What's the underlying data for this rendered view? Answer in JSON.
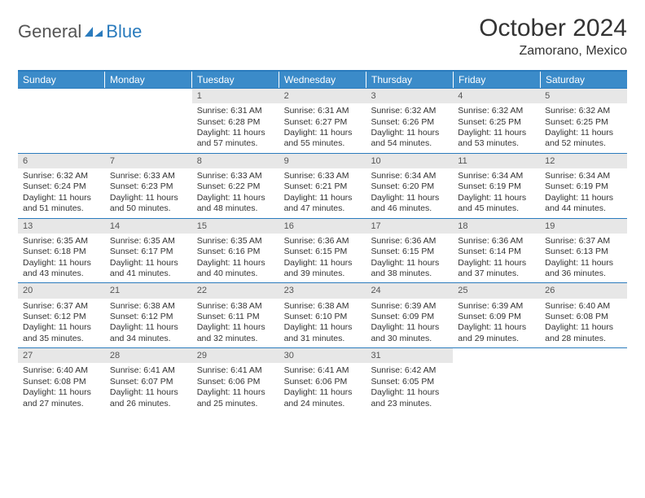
{
  "logo": {
    "text1": "General",
    "text2": "Blue"
  },
  "title": "October 2024",
  "location": "Zamorano, Mexico",
  "colors": {
    "header_bg": "#3b8bc9",
    "header_text": "#ffffff",
    "border": "#2a7bbd",
    "daynum_bg": "#e7e7e7",
    "daynum_text": "#555555",
    "body_text": "#333333",
    "background": "#ffffff"
  },
  "dow": [
    "Sunday",
    "Monday",
    "Tuesday",
    "Wednesday",
    "Thursday",
    "Friday",
    "Saturday"
  ],
  "weeks": [
    [
      null,
      null,
      {
        "n": "1",
        "sr": "Sunrise: 6:31 AM",
        "ss": "Sunset: 6:28 PM",
        "dl": "Daylight: 11 hours and 57 minutes."
      },
      {
        "n": "2",
        "sr": "Sunrise: 6:31 AM",
        "ss": "Sunset: 6:27 PM",
        "dl": "Daylight: 11 hours and 55 minutes."
      },
      {
        "n": "3",
        "sr": "Sunrise: 6:32 AM",
        "ss": "Sunset: 6:26 PM",
        "dl": "Daylight: 11 hours and 54 minutes."
      },
      {
        "n": "4",
        "sr": "Sunrise: 6:32 AM",
        "ss": "Sunset: 6:25 PM",
        "dl": "Daylight: 11 hours and 53 minutes."
      },
      {
        "n": "5",
        "sr": "Sunrise: 6:32 AM",
        "ss": "Sunset: 6:25 PM",
        "dl": "Daylight: 11 hours and 52 minutes."
      }
    ],
    [
      {
        "n": "6",
        "sr": "Sunrise: 6:32 AM",
        "ss": "Sunset: 6:24 PM",
        "dl": "Daylight: 11 hours and 51 minutes."
      },
      {
        "n": "7",
        "sr": "Sunrise: 6:33 AM",
        "ss": "Sunset: 6:23 PM",
        "dl": "Daylight: 11 hours and 50 minutes."
      },
      {
        "n": "8",
        "sr": "Sunrise: 6:33 AM",
        "ss": "Sunset: 6:22 PM",
        "dl": "Daylight: 11 hours and 48 minutes."
      },
      {
        "n": "9",
        "sr": "Sunrise: 6:33 AM",
        "ss": "Sunset: 6:21 PM",
        "dl": "Daylight: 11 hours and 47 minutes."
      },
      {
        "n": "10",
        "sr": "Sunrise: 6:34 AM",
        "ss": "Sunset: 6:20 PM",
        "dl": "Daylight: 11 hours and 46 minutes."
      },
      {
        "n": "11",
        "sr": "Sunrise: 6:34 AM",
        "ss": "Sunset: 6:19 PM",
        "dl": "Daylight: 11 hours and 45 minutes."
      },
      {
        "n": "12",
        "sr": "Sunrise: 6:34 AM",
        "ss": "Sunset: 6:19 PM",
        "dl": "Daylight: 11 hours and 44 minutes."
      }
    ],
    [
      {
        "n": "13",
        "sr": "Sunrise: 6:35 AM",
        "ss": "Sunset: 6:18 PM",
        "dl": "Daylight: 11 hours and 43 minutes."
      },
      {
        "n": "14",
        "sr": "Sunrise: 6:35 AM",
        "ss": "Sunset: 6:17 PM",
        "dl": "Daylight: 11 hours and 41 minutes."
      },
      {
        "n": "15",
        "sr": "Sunrise: 6:35 AM",
        "ss": "Sunset: 6:16 PM",
        "dl": "Daylight: 11 hours and 40 minutes."
      },
      {
        "n": "16",
        "sr": "Sunrise: 6:36 AM",
        "ss": "Sunset: 6:15 PM",
        "dl": "Daylight: 11 hours and 39 minutes."
      },
      {
        "n": "17",
        "sr": "Sunrise: 6:36 AM",
        "ss": "Sunset: 6:15 PM",
        "dl": "Daylight: 11 hours and 38 minutes."
      },
      {
        "n": "18",
        "sr": "Sunrise: 6:36 AM",
        "ss": "Sunset: 6:14 PM",
        "dl": "Daylight: 11 hours and 37 minutes."
      },
      {
        "n": "19",
        "sr": "Sunrise: 6:37 AM",
        "ss": "Sunset: 6:13 PM",
        "dl": "Daylight: 11 hours and 36 minutes."
      }
    ],
    [
      {
        "n": "20",
        "sr": "Sunrise: 6:37 AM",
        "ss": "Sunset: 6:12 PM",
        "dl": "Daylight: 11 hours and 35 minutes."
      },
      {
        "n": "21",
        "sr": "Sunrise: 6:38 AM",
        "ss": "Sunset: 6:12 PM",
        "dl": "Daylight: 11 hours and 34 minutes."
      },
      {
        "n": "22",
        "sr": "Sunrise: 6:38 AM",
        "ss": "Sunset: 6:11 PM",
        "dl": "Daylight: 11 hours and 32 minutes."
      },
      {
        "n": "23",
        "sr": "Sunrise: 6:38 AM",
        "ss": "Sunset: 6:10 PM",
        "dl": "Daylight: 11 hours and 31 minutes."
      },
      {
        "n": "24",
        "sr": "Sunrise: 6:39 AM",
        "ss": "Sunset: 6:09 PM",
        "dl": "Daylight: 11 hours and 30 minutes."
      },
      {
        "n": "25",
        "sr": "Sunrise: 6:39 AM",
        "ss": "Sunset: 6:09 PM",
        "dl": "Daylight: 11 hours and 29 minutes."
      },
      {
        "n": "26",
        "sr": "Sunrise: 6:40 AM",
        "ss": "Sunset: 6:08 PM",
        "dl": "Daylight: 11 hours and 28 minutes."
      }
    ],
    [
      {
        "n": "27",
        "sr": "Sunrise: 6:40 AM",
        "ss": "Sunset: 6:08 PM",
        "dl": "Daylight: 11 hours and 27 minutes."
      },
      {
        "n": "28",
        "sr": "Sunrise: 6:41 AM",
        "ss": "Sunset: 6:07 PM",
        "dl": "Daylight: 11 hours and 26 minutes."
      },
      {
        "n": "29",
        "sr": "Sunrise: 6:41 AM",
        "ss": "Sunset: 6:06 PM",
        "dl": "Daylight: 11 hours and 25 minutes."
      },
      {
        "n": "30",
        "sr": "Sunrise: 6:41 AM",
        "ss": "Sunset: 6:06 PM",
        "dl": "Daylight: 11 hours and 24 minutes."
      },
      {
        "n": "31",
        "sr": "Sunrise: 6:42 AM",
        "ss": "Sunset: 6:05 PM",
        "dl": "Daylight: 11 hours and 23 minutes."
      },
      null,
      null
    ]
  ]
}
